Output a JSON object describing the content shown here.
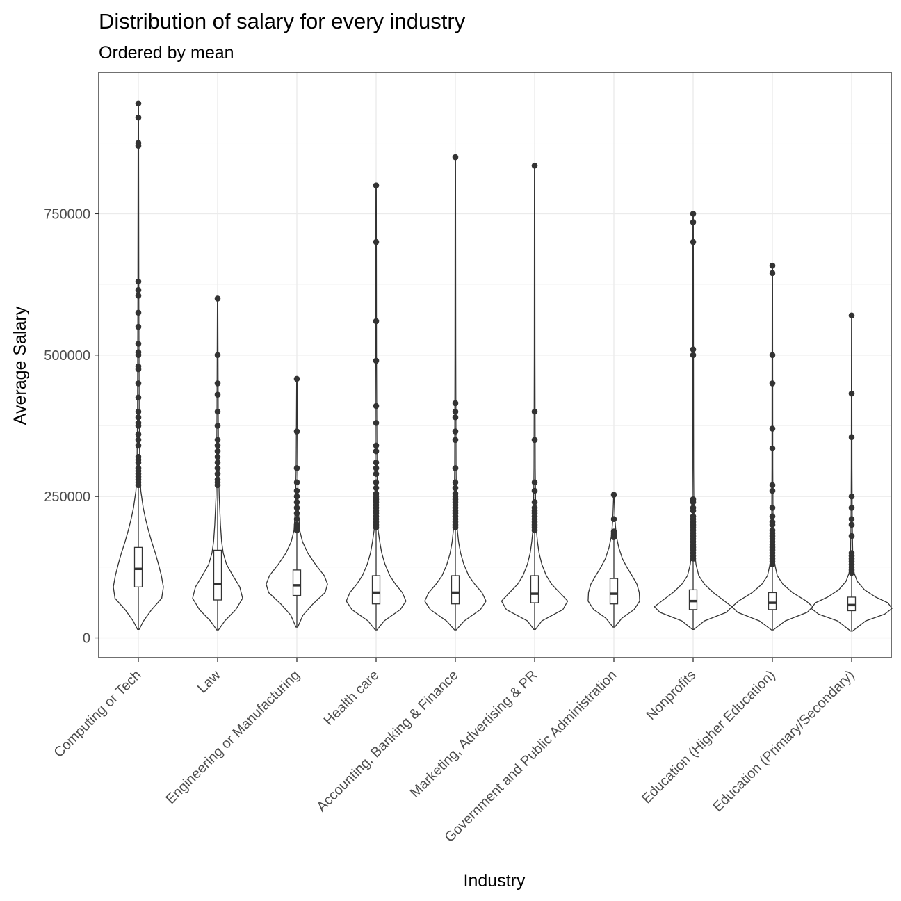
{
  "chart_data": {
    "type": "violin",
    "title": "Distribution of salary for every industry",
    "subtitle": "Ordered by mean",
    "xlabel": "Industry",
    "ylabel": "Average Salary",
    "ylim": [
      -35000,
      1000000
    ],
    "y_ticks": [
      0,
      250000,
      500000,
      750000
    ],
    "y_tick_labels": [
      "0",
      "250000",
      "500000",
      "750000"
    ],
    "grid": true,
    "legend": "none",
    "colors": {
      "outline": "#333333",
      "point": "#333333",
      "grid": "#ebebeb",
      "panel_border": "#333333"
    },
    "categories": [
      "Computing or Tech",
      "Law",
      "Engineering or Manufacturing",
      "Health care",
      "Accounting, Banking & Finance",
      "Marketing, Advertising & PR",
      "Government and Public Administration",
      "Nonprofits",
      "Education (Higher Education)",
      "Education (Primary/Secondary)"
    ],
    "series": [
      {
        "category": "Computing or Tech",
        "box": {
          "q1": 90000,
          "median": 122000,
          "q3": 160000,
          "whisker_low": 15000,
          "whisker_high": 265000
        },
        "outliers": [
          945000,
          920000,
          875000,
          870000,
          630000,
          615000,
          605000,
          575000,
          550000,
          520000,
          505000,
          500000,
          480000,
          475000,
          450000,
          425000,
          400000,
          390000,
          380000,
          375000,
          360000,
          350000,
          340000,
          320000,
          315000,
          310000,
          300000,
          295000,
          290000,
          285000,
          280000,
          275000,
          270000
        ],
        "violin": [
          [
            15000,
            0.02
          ],
          [
            30000,
            0.13
          ],
          [
            50000,
            0.33
          ],
          [
            70000,
            0.58
          ],
          [
            90000,
            0.62
          ],
          [
            110000,
            0.57
          ],
          [
            130000,
            0.5
          ],
          [
            150000,
            0.42
          ],
          [
            170000,
            0.33
          ],
          [
            190000,
            0.25
          ],
          [
            210000,
            0.18
          ],
          [
            230000,
            0.12
          ],
          [
            260000,
            0.06
          ],
          [
            300000,
            0.035
          ],
          [
            400000,
            0.02
          ],
          [
            600000,
            0.012
          ],
          [
            945000,
            0.006
          ]
        ]
      },
      {
        "category": "Law",
        "box": {
          "q1": 67000,
          "median": 95000,
          "q3": 155000,
          "whisker_low": 14000,
          "whisker_high": 265000
        },
        "outliers": [
          600000,
          500000,
          450000,
          430000,
          400000,
          375000,
          350000,
          340000,
          330000,
          320000,
          310000,
          300000,
          290000,
          280000,
          275000,
          270000
        ],
        "violin": [
          [
            14000,
            0.02
          ],
          [
            30000,
            0.18
          ],
          [
            50000,
            0.45
          ],
          [
            70000,
            0.62
          ],
          [
            90000,
            0.55
          ],
          [
            110000,
            0.38
          ],
          [
            130000,
            0.22
          ],
          [
            150000,
            0.14
          ],
          [
            170000,
            0.1
          ],
          [
            200000,
            0.07
          ],
          [
            250000,
            0.04
          ],
          [
            300000,
            0.025
          ],
          [
            400000,
            0.015
          ],
          [
            600000,
            0.006
          ]
        ]
      },
      {
        "category": "Engineering or Manufacturing",
        "box": {
          "q1": 75000,
          "median": 93000,
          "q3": 120000,
          "whisker_low": 19000,
          "whisker_high": 185000
        },
        "outliers": [
          458000,
          365000,
          300000,
          275000,
          260000,
          250000,
          240000,
          230000,
          220000,
          210000,
          200000,
          195000,
          190000
        ],
        "violin": [
          [
            19000,
            0.02
          ],
          [
            40000,
            0.15
          ],
          [
            60000,
            0.4
          ],
          [
            80000,
            0.7
          ],
          [
            95000,
            0.76
          ],
          [
            110000,
            0.68
          ],
          [
            130000,
            0.46
          ],
          [
            150000,
            0.27
          ],
          [
            170000,
            0.14
          ],
          [
            190000,
            0.07
          ],
          [
            230000,
            0.035
          ],
          [
            300000,
            0.018
          ],
          [
            458000,
            0.006
          ]
        ]
      },
      {
        "category": "Health care",
        "box": {
          "q1": 60000,
          "median": 80000,
          "q3": 110000,
          "whisker_low": 14000,
          "whisker_high": 190000
        },
        "outliers": [
          800000,
          700000,
          560000,
          490000,
          410000,
          380000,
          340000,
          330000,
          310000,
          300000,
          290000,
          275000,
          265000,
          255000,
          250000,
          245000,
          240000,
          235000,
          230000,
          225000,
          220000,
          215000,
          210000,
          205000,
          200000,
          195000
        ],
        "violin": [
          [
            14000,
            0.02
          ],
          [
            30000,
            0.2
          ],
          [
            50000,
            0.6
          ],
          [
            65000,
            0.74
          ],
          [
            80000,
            0.65
          ],
          [
            95000,
            0.48
          ],
          [
            110000,
            0.34
          ],
          [
            130000,
            0.22
          ],
          [
            150000,
            0.14
          ],
          [
            170000,
            0.09
          ],
          [
            190000,
            0.05
          ],
          [
            230000,
            0.03
          ],
          [
            300000,
            0.02
          ],
          [
            500000,
            0.01
          ],
          [
            800000,
            0.005
          ]
        ]
      },
      {
        "category": "Accounting, Banking & Finance",
        "box": {
          "q1": 60000,
          "median": 80000,
          "q3": 110000,
          "whisker_low": 14000,
          "whisker_high": 190000
        },
        "outliers": [
          850000,
          415000,
          400000,
          390000,
          365000,
          350000,
          300000,
          275000,
          265000,
          255000,
          250000,
          245000,
          240000,
          235000,
          230000,
          225000,
          220000,
          215000,
          210000,
          205000,
          200000,
          195000
        ],
        "violin": [
          [
            14000,
            0.02
          ],
          [
            30000,
            0.22
          ],
          [
            50000,
            0.62
          ],
          [
            65000,
            0.76
          ],
          [
            80000,
            0.66
          ],
          [
            95000,
            0.48
          ],
          [
            110000,
            0.33
          ],
          [
            130000,
            0.21
          ],
          [
            150000,
            0.13
          ],
          [
            170000,
            0.08
          ],
          [
            190000,
            0.05
          ],
          [
            230000,
            0.03
          ],
          [
            300000,
            0.018
          ],
          [
            500000,
            0.01
          ],
          [
            850000,
            0.005
          ]
        ]
      },
      {
        "category": "Marketing, Advertising & PR",
        "box": {
          "q1": 62000,
          "median": 78000,
          "q3": 110000,
          "whisker_low": 15000,
          "whisker_high": 185000
        },
        "outliers": [
          835000,
          400000,
          350000,
          275000,
          260000,
          240000,
          230000,
          225000,
          220000,
          215000,
          210000,
          205000,
          200000,
          195000,
          190000
        ],
        "violin": [
          [
            15000,
            0.02
          ],
          [
            30000,
            0.18
          ],
          [
            50000,
            0.7
          ],
          [
            65000,
            0.82
          ],
          [
            80000,
            0.62
          ],
          [
            95000,
            0.42
          ],
          [
            110000,
            0.29
          ],
          [
            130000,
            0.18
          ],
          [
            150000,
            0.11
          ],
          [
            170000,
            0.07
          ],
          [
            190000,
            0.045
          ],
          [
            230000,
            0.025
          ],
          [
            300000,
            0.015
          ],
          [
            500000,
            0.008
          ],
          [
            835000,
            0.005
          ]
        ]
      },
      {
        "category": "Government and Public Administration",
        "box": {
          "q1": 60000,
          "median": 78000,
          "q3": 105000,
          "whisker_low": 19000,
          "whisker_high": 175000
        },
        "outliers": [
          253000,
          210000,
          188000,
          185000,
          182000,
          180000,
          178000
        ],
        "violin": [
          [
            19000,
            0.02
          ],
          [
            35000,
            0.2
          ],
          [
            50000,
            0.5
          ],
          [
            65000,
            0.64
          ],
          [
            80000,
            0.63
          ],
          [
            95000,
            0.57
          ],
          [
            110000,
            0.45
          ],
          [
            125000,
            0.32
          ],
          [
            140000,
            0.21
          ],
          [
            160000,
            0.12
          ],
          [
            180000,
            0.06
          ],
          [
            210000,
            0.025
          ],
          [
            253000,
            0.006
          ]
        ]
      },
      {
        "category": "Nonprofits",
        "box": {
          "q1": 50000,
          "median": 65000,
          "q3": 85000,
          "whisker_low": 15000,
          "whisker_high": 135000
        },
        "outliers": [
          750000,
          735000,
          700000,
          510000,
          500000,
          245000,
          240000,
          230000,
          225000,
          215000,
          210000,
          205000,
          200000,
          195000,
          190000,
          185000,
          180000,
          175000,
          170000,
          165000,
          160000,
          155000,
          150000,
          145000,
          140000
        ],
        "violin": [
          [
            15000,
            0.02
          ],
          [
            30000,
            0.28
          ],
          [
            45000,
            0.82
          ],
          [
            55000,
            0.96
          ],
          [
            65000,
            0.78
          ],
          [
            80000,
            0.5
          ],
          [
            95000,
            0.28
          ],
          [
            110000,
            0.14
          ],
          [
            130000,
            0.07
          ],
          [
            150000,
            0.04
          ],
          [
            200000,
            0.02
          ],
          [
            300000,
            0.012
          ],
          [
            500000,
            0.008
          ],
          [
            750000,
            0.005
          ]
        ]
      },
      {
        "category": "Education (Higher Education)",
        "box": {
          "q1": 50000,
          "median": 62000,
          "q3": 80000,
          "whisker_low": 14000,
          "whisker_high": 125000
        },
        "outliers": [
          658000,
          645000,
          500000,
          450000,
          370000,
          335000,
          270000,
          260000,
          230000,
          215000,
          205000,
          200000,
          190000,
          185000,
          180000,
          175000,
          170000,
          165000,
          160000,
          155000,
          150000,
          145000,
          140000,
          135000,
          130000
        ],
        "violin": [
          [
            14000,
            0.02
          ],
          [
            30000,
            0.32
          ],
          [
            45000,
            0.86
          ],
          [
            55000,
            1.0
          ],
          [
            65000,
            0.84
          ],
          [
            80000,
            0.5
          ],
          [
            95000,
            0.26
          ],
          [
            110000,
            0.12
          ],
          [
            130000,
            0.06
          ],
          [
            160000,
            0.03
          ],
          [
            200000,
            0.018
          ],
          [
            300000,
            0.01
          ],
          [
            658000,
            0.005
          ]
        ]
      },
      {
        "category": "Education (Primary/Secondary)",
        "box": {
          "q1": 48000,
          "median": 58000,
          "q3": 72000,
          "whisker_low": 12000,
          "whisker_high": 110000
        },
        "outliers": [
          570000,
          432000,
          355000,
          250000,
          230000,
          210000,
          200000,
          180000,
          150000,
          145000,
          140000,
          135000,
          130000,
          125000,
          120000,
          115000
        ],
        "violin": [
          [
            12000,
            0.02
          ],
          [
            30000,
            0.35
          ],
          [
            42000,
            0.82
          ],
          [
            52000,
            1.0
          ],
          [
            62000,
            0.9
          ],
          [
            72000,
            0.6
          ],
          [
            85000,
            0.32
          ],
          [
            100000,
            0.14
          ],
          [
            115000,
            0.06
          ],
          [
            140000,
            0.03
          ],
          [
            200000,
            0.015
          ],
          [
            300000,
            0.008
          ],
          [
            570000,
            0.004
          ]
        ]
      }
    ]
  }
}
